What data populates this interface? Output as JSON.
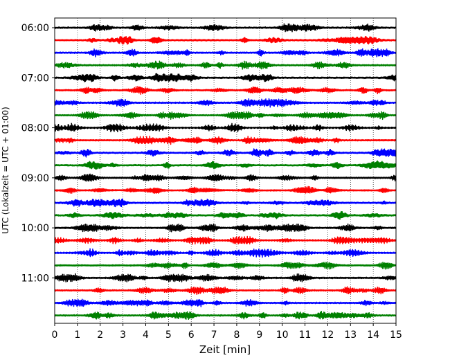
{
  "chart_data": {
    "type": "line",
    "title": "",
    "xlabel": "Zeit  [min]",
    "ylabel": "UTC (Lokalzeit = UTC + 01:00)",
    "xlim": [
      0,
      15
    ],
    "x_ticks": [
      "0",
      "1",
      "2",
      "3",
      "4",
      "5",
      "6",
      "7",
      "8",
      "9",
      "10",
      "11",
      "12",
      "13",
      "14",
      "15"
    ],
    "y_ticks": [
      "06:00",
      "07:00",
      "08:00",
      "09:00",
      "10:00",
      "11:00"
    ],
    "grid": "vertical dotted at each minute",
    "legend": "none",
    "trace_interval_min": 15,
    "traces_per_hour": 4,
    "trace_colors": [
      "#000000",
      "#ff0000",
      "#0000ff",
      "#008000"
    ],
    "series": [
      {
        "start": "06:00"
      },
      {
        "start": "06:15"
      },
      {
        "start": "06:30"
      },
      {
        "start": "06:45"
      },
      {
        "start": "07:00"
      },
      {
        "start": "07:15"
      },
      {
        "start": "07:30"
      },
      {
        "start": "07:45"
      },
      {
        "start": "08:00"
      },
      {
        "start": "08:15"
      },
      {
        "start": "08:30"
      },
      {
        "start": "08:45"
      },
      {
        "start": "09:00"
      },
      {
        "start": "09:15"
      },
      {
        "start": "09:30"
      },
      {
        "start": "09:45"
      },
      {
        "start": "10:00"
      },
      {
        "start": "10:15"
      },
      {
        "start": "10:30"
      },
      {
        "start": "10:45"
      },
      {
        "start": "11:00"
      },
      {
        "start": "11:15"
      },
      {
        "start": "11:30"
      },
      {
        "start": "11:45"
      }
    ]
  }
}
